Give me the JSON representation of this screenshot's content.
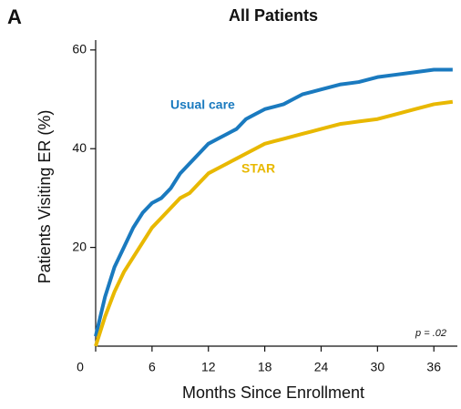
{
  "chart_data": {
    "type": "line",
    "panel_label": "A",
    "title": "All Patients",
    "x_label": "Months Since Enrollment",
    "y_label": "Patients Visiting ER (%)",
    "annotation": "p = .02",
    "x": [
      0,
      1,
      2,
      3,
      4,
      5,
      6,
      7,
      8,
      9,
      10,
      11,
      12,
      13,
      14,
      15,
      16,
      17,
      18,
      19,
      20,
      21,
      22,
      23,
      24,
      26,
      28,
      30,
      32,
      34,
      36,
      38
    ],
    "series": [
      {
        "name": "Usual care",
        "color": "#1a7abf",
        "values": [
          2,
          10,
          16,
          20,
          24,
          27,
          29,
          30,
          32,
          35,
          37,
          39,
          41,
          42,
          43,
          44,
          46,
          47,
          48,
          48.5,
          49,
          50,
          51,
          51.5,
          52,
          53,
          53.5,
          54.5,
          55,
          55.5,
          56,
          56
        ]
      },
      {
        "name": "STAR",
        "color": "#e8b800",
        "values": [
          0,
          6,
          11,
          15,
          18,
          21,
          24,
          26,
          28,
          30,
          31,
          33,
          35,
          36,
          37,
          38,
          39,
          40,
          41,
          41.5,
          42,
          42.5,
          43,
          43.5,
          44,
          45,
          45.5,
          46,
          47,
          48,
          49,
          49.5
        ]
      }
    ],
    "xlim": [
      0,
      38.5
    ],
    "xticks": [
      0,
      6,
      12,
      18,
      24,
      30,
      36
    ],
    "ylim": [
      0,
      62
    ],
    "yticks": [
      20,
      40,
      60
    ]
  }
}
